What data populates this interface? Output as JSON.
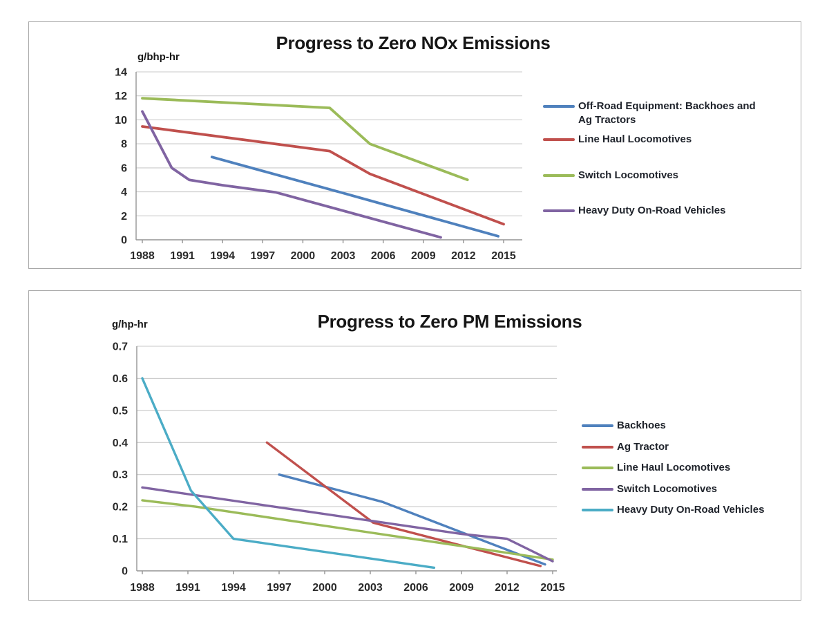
{
  "theme": {
    "background": "#FFFFFF",
    "panel_border_color": "#A8A8A8",
    "grid_color": "#C9C9C9",
    "axis_color": "#949494",
    "tick_text_color": "#2A2A2A",
    "title_color": "#161616",
    "legend_text_color": "#20242C"
  },
  "chart_data": [
    {
      "type": "line",
      "title": "Progress to Zero NOx Emissions",
      "ylabel": "g/bhp-hr",
      "xlabel": "",
      "grid": true,
      "legend_position": "right",
      "x_ticks": [
        1988,
        1991,
        1994,
        1997,
        2000,
        2003,
        2006,
        2009,
        2012,
        2015
      ],
      "ylim": [
        0,
        14
      ],
      "y_step": 2,
      "y_tick_labels": [
        "0",
        "2",
        "4",
        "6",
        "8",
        "10",
        "12",
        "14"
      ],
      "series": [
        {
          "name": "Off-Road Equipment: Backhoes and Ag Tractors",
          "color": "#4F81BD",
          "points": [
            [
              1993.2,
              6.9
            ],
            [
              2003,
              3.9
            ],
            [
              2014.6,
              0.3
            ]
          ]
        },
        {
          "name": "Line Haul Locomotives",
          "color": "#C0504D",
          "points": [
            [
              1988,
              9.45
            ],
            [
              2002,
              7.4
            ],
            [
              2005,
              5.5
            ],
            [
              2015,
              1.3
            ]
          ]
        },
        {
          "name": "Switch Locomotives",
          "color": "#9BBB59",
          "points": [
            [
              1988,
              11.8
            ],
            [
              2002,
              11.0
            ],
            [
              2005,
              8.0
            ],
            [
              2012.3,
              5.0
            ]
          ]
        },
        {
          "name": "Heavy Duty On-Road Vehicles",
          "color": "#8064A2",
          "points": [
            [
              1988,
              10.7
            ],
            [
              1990.2,
              6.0
            ],
            [
              1991.5,
              5.0
            ],
            [
              1994,
              4.55
            ],
            [
              1998,
              3.95
            ],
            [
              2010.3,
              0.2
            ]
          ]
        }
      ]
    },
    {
      "type": "line",
      "title": "Progress to Zero PM Emissions",
      "ylabel": "g/hp-hr",
      "xlabel": "",
      "grid": true,
      "legend_position": "right",
      "x_ticks": [
        1988,
        1991,
        1994,
        1997,
        2000,
        2003,
        2006,
        2009,
        2012,
        2015
      ],
      "ylim": [
        0,
        0.7
      ],
      "y_step": 0.1,
      "y_tick_labels": [
        "0",
        "0.1",
        "0.2",
        "0.3",
        "0.4",
        "0.5",
        "0.6",
        "0.7"
      ],
      "series": [
        {
          "name": "Backhoes",
          "color": "#4F81BD",
          "points": [
            [
              1997,
              0.3
            ],
            [
              2003.8,
              0.215
            ],
            [
              2014.5,
              0.02
            ]
          ]
        },
        {
          "name": "Ag Tractor",
          "color": "#C0504D",
          "points": [
            [
              1996.2,
              0.4
            ],
            [
              2003.2,
              0.15
            ],
            [
              2014.2,
              0.015
            ]
          ]
        },
        {
          "name": "Line Haul Locomotives",
          "color": "#9BBB59",
          "points": [
            [
              1988,
              0.22
            ],
            [
              1991.5,
              0.2
            ],
            [
              2015,
              0.035
            ]
          ]
        },
        {
          "name": "Switch Locomotives",
          "color": "#8064A2",
          "points": [
            [
              1988,
              0.26
            ],
            [
              2009,
              0.115
            ],
            [
              2012,
              0.1
            ],
            [
              2015,
              0.03
            ]
          ]
        },
        {
          "name": "Heavy Duty On-Road Vehicles",
          "color": "#4BACC6",
          "points": [
            [
              1988,
              0.6
            ],
            [
              1991.2,
              0.25
            ],
            [
              1994,
              0.1
            ],
            [
              2007.2,
              0.01
            ]
          ]
        }
      ]
    }
  ]
}
